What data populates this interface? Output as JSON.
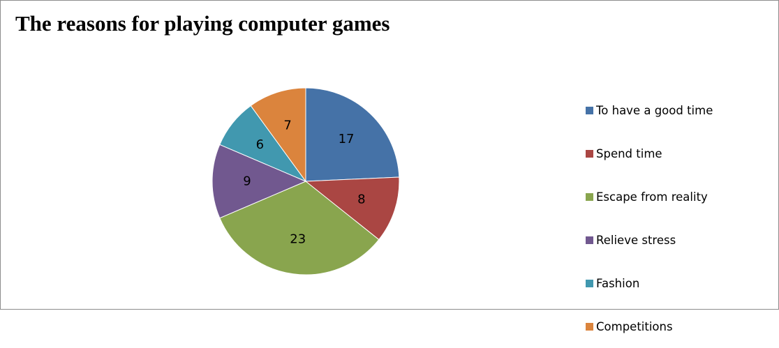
{
  "chart_data": {
    "type": "pie",
    "title": "The reasons for playing computer games",
    "categories": [
      "To have a good time",
      "Spend time",
      "Escape from reality",
      "Relieve stress",
      "Fashion",
      "Competitions"
    ],
    "values": [
      17,
      8,
      23,
      9,
      6,
      7
    ],
    "colors": [
      "#4572a7",
      "#aa4643",
      "#89a54e",
      "#71588f",
      "#4198af",
      "#db843d"
    ],
    "legend_position": "right",
    "data_labels": true
  }
}
